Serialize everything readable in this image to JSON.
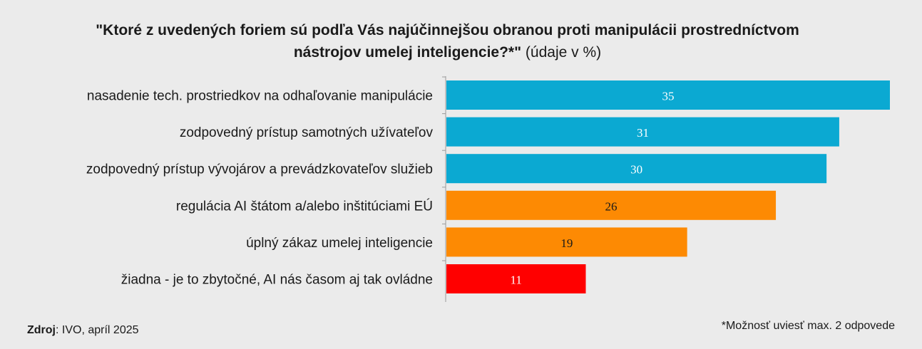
{
  "title_main_line1": "\"Ktoré z uvedených foriem sú podľa Vás najúčinnejšou obranou proti manipulácii prostredníctvom",
  "title_main_line2": "nástrojov umelej inteligencie?*\"",
  "title_unit": "(údaje v %)",
  "source_label": "Zdroj",
  "source_text": ": IVO, apríl 2025",
  "footnote": "*Možnosť uviesť max. 2 odpovede",
  "chart_data": {
    "type": "bar",
    "orientation": "horizontal",
    "categories": [
      "nasadenie tech. prostriedkov na odhaľovanie manipulácie",
      "zodpovedný prístup samotných užívateľov",
      "zodpovedný prístup vývojárov a prevádzkovateľov služieb",
      "regulácia AI štátom a/alebo inštitúciami EÚ",
      "úplný zákaz umelej inteligencie",
      "žiadna - je to zbytočné, AI nás časom aj tak ovládne"
    ],
    "values": [
      35,
      31,
      30,
      26,
      19,
      11
    ],
    "colors": [
      "#0ba9d2",
      "#0ba9d2",
      "#0ba9d2",
      "#fd8a03",
      "#fd8a03",
      "#ff0000"
    ],
    "value_label_colors": [
      "#ffffff",
      "#ffffff",
      "#ffffff",
      "#1a1a1a",
      "#1a1a1a",
      "#ffffff"
    ],
    "xlim": [
      0,
      35
    ],
    "grid": false,
    "legend": "none"
  }
}
